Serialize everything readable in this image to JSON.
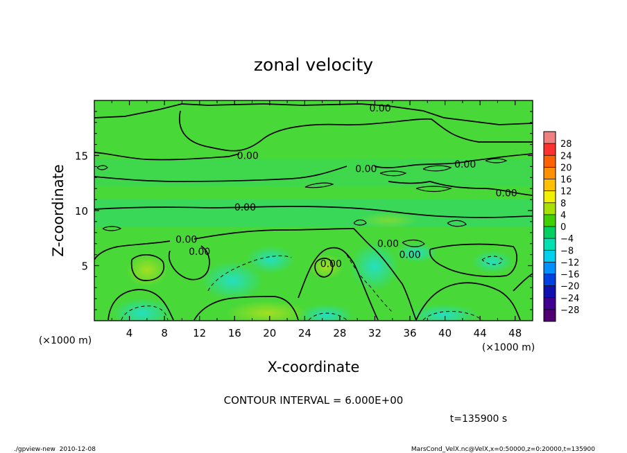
{
  "chart_data": {
    "type": "heatmap",
    "title": "zonal velocity",
    "xlabel": "X-coordinate",
    "ylabel": "Z-coordinate",
    "x_unit_label": "(×1000 m)",
    "y_unit_label": "(×1000 m)",
    "xlim": [
      0,
      50
    ],
    "ylim": [
      0,
      20
    ],
    "x_ticks": [
      4,
      8,
      12,
      16,
      20,
      24,
      28,
      32,
      36,
      40,
      44,
      48
    ],
    "y_ticks": [
      5,
      10,
      15
    ],
    "x_tick_labels": [
      "4",
      "8",
      "12",
      "16",
      "20",
      "24",
      "28",
      "32",
      "36",
      "40",
      "44",
      "48"
    ],
    "y_tick_labels": [
      "5",
      "10",
      "15"
    ],
    "contour_labels": [
      {
        "text": "0.00",
        "x": 32.6,
        "z": 19.3
      },
      {
        "text": "0.00",
        "x": 17.5,
        "z": 15.0
      },
      {
        "text": "0.00",
        "x": 31.0,
        "z": 13.8
      },
      {
        "text": "0.00",
        "x": 42.3,
        "z": 14.2
      },
      {
        "text": "0.00",
        "x": 47.0,
        "z": 11.6
      },
      {
        "text": "0.00",
        "x": 17.2,
        "z": 10.3
      },
      {
        "text": "0.00",
        "x": 10.5,
        "z": 7.4
      },
      {
        "text": "0.00",
        "x": 12.0,
        "z": 6.3
      },
      {
        "text": "0.00",
        "x": 27.0,
        "z": 5.2
      },
      {
        "text": "0.00",
        "x": 33.5,
        "z": 7.0
      },
      {
        "text": "0.00",
        "x": 36.0,
        "z": 6.0
      }
    ],
    "colorbar": {
      "labels": [
        "28",
        "24",
        "20",
        "16",
        "12",
        "8",
        "4",
        "0",
        "−4",
        "−8",
        "−12",
        "−16",
        "−20",
        "−24",
        "−28"
      ],
      "colors": [
        "#f08080",
        "#ff3030",
        "#ff6000",
        "#ff9000",
        "#ffc000",
        "#f0f000",
        "#a8e000",
        "#40d000",
        "#00d060",
        "#00e0b0",
        "#00d0f0",
        "#0090ff",
        "#0040e0",
        "#1010b0",
        "#400090",
        "#500070"
      ],
      "min": -28,
      "max": 28,
      "interval": 4
    },
    "contour_interval_text": "CONTOUR INTERVAL = 6.000E+00",
    "time_text": "t=135900 s"
  },
  "footer": {
    "left": "./gpview-new  2010-12-08",
    "right": "MarsCond_VelX.nc@VelX,x=0:50000,z=0:20000,t=135900"
  }
}
